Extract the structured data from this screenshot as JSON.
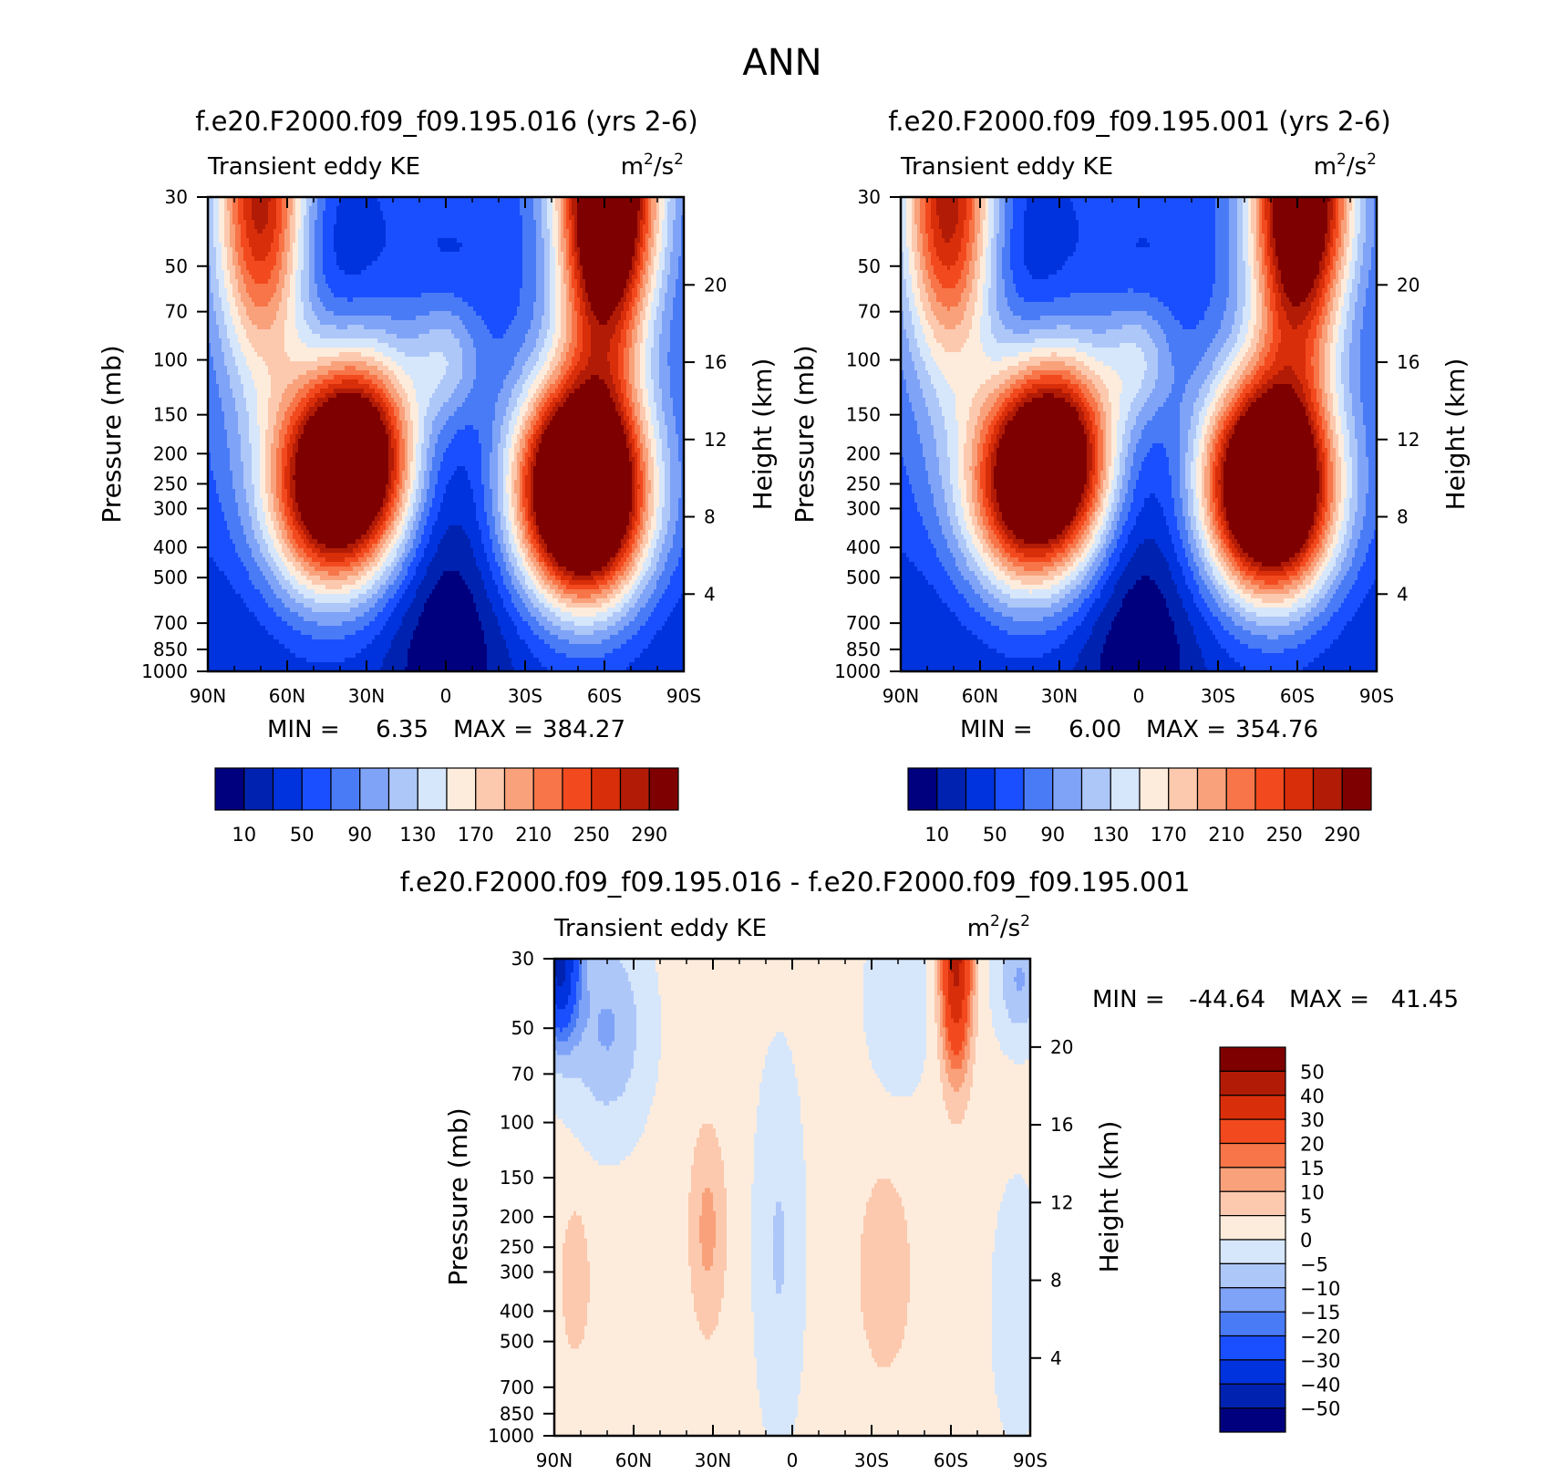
{
  "figure": {
    "title": "ANN"
  },
  "colors": {
    "abs_palette": [
      "#00007f",
      "#0022b0",
      "#0033dd",
      "#1a4fff",
      "#4a7bf6",
      "#7fa3f7",
      "#aec7f9",
      "#d6e6fb",
      "#fdecdc",
      "#fcc9ae",
      "#f9a17b",
      "#f77548",
      "#f24a1e",
      "#d92e0a",
      "#b21b06",
      "#7f0000"
    ],
    "diff_palette": [
      "#00007f",
      "#0022b0",
      "#0033dd",
      "#1a4fff",
      "#4a7bf6",
      "#7fa3f7",
      "#aec7f9",
      "#d6e6fb",
      "#fdecdc",
      "#fcc9ae",
      "#f9a17b",
      "#f77548",
      "#f24a1e",
      "#d92e0a",
      "#b21b06",
      "#7f0000"
    ]
  },
  "chart_data": [
    {
      "type": "heatmap",
      "id": "case",
      "title": "f.e20.F2000.f09_f09.195.016 (yrs 2-6)",
      "left_label": "Transient eddy KE",
      "units_base": "m",
      "units_exp1": "2",
      "units_mid": "/s",
      "units_exp2": "2",
      "ylabel": "Pressure (mb)",
      "y2label": "Height (km)",
      "x_ticks": [
        "90N",
        "60N",
        "30N",
        "0",
        "30S",
        "60S",
        "90S"
      ],
      "y_ticks": [
        "30",
        "50",
        "70",
        "100",
        "150",
        "200",
        "250",
        "300",
        "400",
        "500",
        "700",
        "850",
        "1000"
      ],
      "y2_ticks": [
        "20",
        "16",
        "12",
        "8",
        "4"
      ],
      "min_label": "MIN =",
      "min_value": "6.35",
      "max_label": "MAX =",
      "max_value": "384.27",
      "colorbar_labels": [
        "10",
        "50",
        "90",
        "130",
        "170",
        "210",
        "250",
        "290"
      ],
      "levels": [
        10,
        30,
        50,
        70,
        90,
        110,
        130,
        150,
        170,
        190,
        210,
        230,
        250,
        270,
        290
      ],
      "features": [
        {
          "lat": 70,
          "p": 30,
          "value": 260
        },
        {
          "lat": 33,
          "p": 200,
          "value": 300
        },
        {
          "lat": 47,
          "p": 280,
          "value": 230
        },
        {
          "lat": -47,
          "p": 250,
          "value": 255
        },
        {
          "lat": -55,
          "p": 290,
          "value": 280
        },
        {
          "lat": -60,
          "p": 30,
          "value": 384
        }
      ]
    },
    {
      "type": "heatmap",
      "id": "control",
      "title": "f.e20.F2000.f09_f09.195.001 (yrs 2-6)",
      "left_label": "Transient eddy KE",
      "units_base": "m",
      "units_exp1": "2",
      "units_mid": "/s",
      "units_exp2": "2",
      "ylabel": "Pressure (mb)",
      "y2label": "Height (km)",
      "x_ticks": [
        "90N",
        "60N",
        "30N",
        "0",
        "30S",
        "60S",
        "90S"
      ],
      "y_ticks": [
        "30",
        "50",
        "70",
        "100",
        "150",
        "200",
        "250",
        "300",
        "400",
        "500",
        "700",
        "850",
        "1000"
      ],
      "y2_ticks": [
        "20",
        "16",
        "12",
        "8",
        "4"
      ],
      "min_label": "MIN =",
      "min_value": "6.00",
      "max_label": "MAX =",
      "max_value": "354.76",
      "colorbar_labels": [
        "10",
        "50",
        "90",
        "130",
        "170",
        "210",
        "250",
        "290"
      ],
      "levels": [
        10,
        30,
        50,
        70,
        90,
        110,
        130,
        150,
        170,
        190,
        210,
        230,
        250,
        270,
        290
      ],
      "features": [
        {
          "lat": 72,
          "p": 30,
          "value": 265
        },
        {
          "lat": 30,
          "p": 200,
          "value": 290
        },
        {
          "lat": 45,
          "p": 270,
          "value": 230
        },
        {
          "lat": -45,
          "p": 240,
          "value": 240
        },
        {
          "lat": -53,
          "p": 280,
          "value": 270
        },
        {
          "lat": -60,
          "p": 30,
          "value": 354
        }
      ]
    },
    {
      "type": "heatmap",
      "id": "difference",
      "title": "f.e20.F2000.f09_f09.195.016 - f.e20.F2000.f09_f09.195.001",
      "left_label": "Transient eddy KE",
      "units_base": "m",
      "units_exp1": "2",
      "units_mid": "/s",
      "units_exp2": "2",
      "ylabel": "Pressure (mb)",
      "y2label": "Height (km)",
      "x_ticks": [
        "90N",
        "60N",
        "30N",
        "0",
        "30S",
        "60S",
        "90S"
      ],
      "y_ticks": [
        "30",
        "50",
        "70",
        "100",
        "150",
        "200",
        "250",
        "300",
        "400",
        "500",
        "700",
        "850",
        "1000"
      ],
      "y2_ticks": [
        "20",
        "16",
        "12",
        "8",
        "4"
      ],
      "min_label": "MIN =",
      "min_value": "-44.64",
      "max_label": "MAX =",
      "max_value": "41.45",
      "colorbar_labels": [
        "50",
        "40",
        "30",
        "20",
        "15",
        "10",
        "5",
        "0",
        "-5",
        "-10",
        "-15",
        "-20",
        "-30",
        "-40",
        "-50"
      ],
      "levels": [
        -50,
        -40,
        -30,
        -20,
        -15,
        -10,
        -5,
        0,
        5,
        10,
        15,
        20,
        30,
        40,
        50
      ],
      "features": [
        {
          "lat": 87,
          "p": 30,
          "value": -42
        },
        {
          "lat": 32,
          "p": 200,
          "value": 12
        },
        {
          "lat": -60,
          "p": 35,
          "value": 41
        },
        {
          "lat": -85,
          "p": 35,
          "value": -25
        }
      ]
    }
  ]
}
